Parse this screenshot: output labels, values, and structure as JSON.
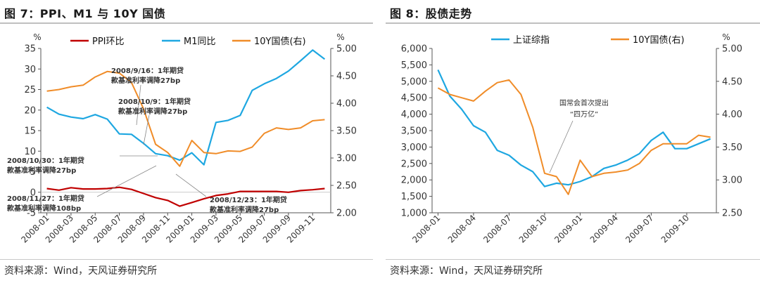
{
  "left": {
    "title": "图 7：PPI、M1 与 10Y 国债",
    "source": "资料来源：Wind，天风证券研究所",
    "left_unit": "%",
    "right_unit": "%",
    "left_ticks": [
      "35",
      "30",
      "25",
      "20",
      "15",
      "10",
      "5",
      "0",
      "-5"
    ],
    "right_ticks": [
      "5.00",
      "4.50",
      "4.00",
      "3.50",
      "3.00",
      "2.50",
      "2.00"
    ],
    "x_ticks": [
      "2008-01",
      "2008-03",
      "2008-05",
      "2008-07",
      "2008-09",
      "2008-11",
      "2009-01",
      "2009-03",
      "2009-05",
      "2009-07",
      "2009-09",
      "2009-11"
    ],
    "legend": [
      "PPI环比",
      "M1同比",
      "10Y国债(右)"
    ],
    "annotations": [
      {
        "line1": "2008/9/16：1年期贷",
        "line2": "款基准利率调降27bp"
      },
      {
        "line1": "2008/10/9：1年期贷",
        "line2": "款基准利率调降27bp"
      },
      {
        "line1": "2008/10/30：1年期贷",
        "line2": "款基准利率调降27bp"
      },
      {
        "line1": "2008/11/27：1年期贷",
        "line2": "款基准利率调降108bp"
      },
      {
        "line1": "2008/12/23：1年期贷",
        "line2": "款基准利率调降27bp"
      }
    ]
  },
  "right": {
    "title": "图 8：股债走势",
    "source": "资料来源：Wind，天风证券研究所",
    "right_unit": "%",
    "left_ticks": [
      "6,000",
      "5,500",
      "5,000",
      "4,500",
      "4,000",
      "3,500",
      "3,000",
      "2,500",
      "2,000",
      "1,500",
      "1,000"
    ],
    "right_ticks": [
      "5.00",
      "4.50",
      "4.00",
      "3.50",
      "3.00",
      "2.50"
    ],
    "x_ticks": [
      "2008-01",
      "2008-04",
      "2008-07",
      "2008-10",
      "2009-01",
      "2009-04",
      "2009-07",
      "2009-10"
    ],
    "legend": [
      "上证综指",
      "10Y国债(右)"
    ],
    "annotation": {
      "line1": "国常会首次提出",
      "line2": "“四万亿”"
    }
  },
  "colors": {
    "ppi": "#c00000",
    "m1": "#1ea7e1",
    "bond": "#f08c28",
    "axis": "#555555"
  },
  "chart_data": [
    {
      "type": "line",
      "title": "图 7：PPI、M1 与 10Y 国债",
      "x": [
        "2008-01",
        "2008-02",
        "2008-03",
        "2008-04",
        "2008-05",
        "2008-06",
        "2008-07",
        "2008-08",
        "2008-09",
        "2008-10",
        "2008-11",
        "2008-12",
        "2009-01",
        "2009-02",
        "2009-03",
        "2009-04",
        "2009-05",
        "2009-06",
        "2009-07",
        "2009-08",
        "2009-09",
        "2009-10",
        "2009-11",
        "2009-12"
      ],
      "ylim_left": [
        -5,
        35
      ],
      "ylim_right": [
        2.0,
        5.0
      ],
      "series": [
        {
          "name": "PPI环比",
          "axis": "left",
          "values": [
            0.9,
            0.5,
            1.1,
            0.8,
            0.8,
            0.9,
            1.2,
            0.7,
            -0.3,
            -1.3,
            -2.0,
            -3.4,
            -2.5,
            -1.6,
            -0.8,
            -0.4,
            0.2,
            0.2,
            0.2,
            0.2,
            0.0,
            0.4,
            0.6,
            0.9
          ]
        },
        {
          "name": "M1同比",
          "axis": "left",
          "values": [
            20.7,
            19.0,
            18.3,
            17.9,
            18.9,
            17.8,
            14.2,
            14.1,
            11.9,
            9.4,
            8.9,
            7.8,
            9.6,
            6.7,
            17.0,
            17.5,
            18.7,
            24.8,
            26.4,
            27.7,
            29.5,
            32.0,
            34.6,
            32.4
          ]
        },
        {
          "name": "10Y国债(右)",
          "axis": "right",
          "values": [
            4.22,
            4.25,
            4.3,
            4.33,
            4.48,
            4.58,
            4.55,
            4.38,
            3.9,
            3.25,
            3.1,
            2.85,
            3.32,
            3.1,
            3.08,
            3.13,
            3.12,
            3.2,
            3.45,
            3.55,
            3.52,
            3.55,
            3.68,
            3.7
          ]
        }
      ]
    },
    {
      "type": "line",
      "title": "图 8：股债走势",
      "x": [
        "2008-01",
        "2008-02",
        "2008-03",
        "2008-04",
        "2008-05",
        "2008-06",
        "2008-07",
        "2008-08",
        "2008-09",
        "2008-10",
        "2008-11",
        "2008-12",
        "2009-01",
        "2009-02",
        "2009-03",
        "2009-04",
        "2009-05",
        "2009-06",
        "2009-07",
        "2009-08",
        "2009-09",
        "2009-10",
        "2009-11",
        "2009-12"
      ],
      "ylim_left": [
        1000,
        6000
      ],
      "ylim_right": [
        2.5,
        5.0
      ],
      "series": [
        {
          "name": "上证综指",
          "axis": "left",
          "values": [
            5350,
            4550,
            4150,
            3650,
            3450,
            2900,
            2750,
            2450,
            2250,
            1800,
            1900,
            1850,
            1950,
            2100,
            2350,
            2450,
            2600,
            2800,
            3200,
            3450,
            2950,
            2950,
            3100,
            3250
          ]
        },
        {
          "name": "10Y国债(右)",
          "axis": "right",
          "values": [
            4.4,
            4.3,
            4.25,
            4.2,
            4.35,
            4.48,
            4.52,
            4.3,
            3.8,
            3.1,
            3.05,
            2.78,
            3.3,
            3.05,
            3.1,
            3.12,
            3.15,
            3.25,
            3.45,
            3.55,
            3.55,
            3.55,
            3.68,
            3.65
          ]
        }
      ]
    }
  ]
}
